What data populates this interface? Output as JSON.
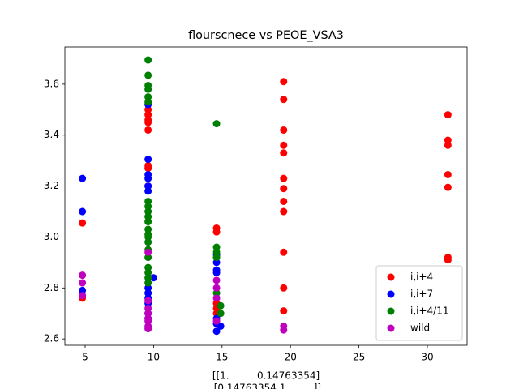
{
  "chart_data": {
    "type": "scatter",
    "title": "flourscnece vs PEOE_VSA3",
    "xlabel": [
      "[[1.         0.14763354]",
      " [0.14763354 1.        ]]"
    ],
    "xlim": [
      3.52,
      32.9
    ],
    "ylim": [
      2.575,
      3.746
    ],
    "xticks": [
      5,
      10,
      15,
      20,
      25,
      30
    ],
    "yticks": [
      2.6,
      2.8,
      {
        "value": 3,
        "label": "3.0"
      },
      3.2,
      3.4,
      3.6
    ],
    "legend": "lower right",
    "series": [
      {
        "name": "i,i+4",
        "color": "#ff0000",
        "x": [
          4.8,
          4.8,
          9.6,
          9.6,
          9.6,
          9.6,
          9.6,
          9.6,
          9.6,
          9.6,
          14.6,
          14.6,
          14.6,
          14.6,
          14.6,
          14.6,
          19.5,
          19.5,
          19.5,
          19.5,
          19.5,
          19.5,
          19.5,
          19.5,
          19.5,
          19.5,
          19.5,
          19.5,
          31.5,
          31.5,
          31.5,
          31.5,
          31.5,
          31.5,
          31.5
        ],
        "y": [
          3.055,
          2.76,
          3.5,
          3.48,
          3.46,
          3.45,
          3.42,
          3.28,
          3.27,
          3.2,
          3.035,
          3.02,
          2.74,
          2.72,
          2.7,
          2.66,
          3.61,
          3.54,
          3.42,
          3.36,
          3.33,
          3.23,
          3.19,
          3.14,
          3.1,
          2.94,
          2.8,
          2.71,
          3.48,
          3.38,
          3.36,
          3.245,
          3.195,
          2.92,
          2.91
        ]
      },
      {
        "name": "i,i+7",
        "color": "#0000ff",
        "x": [
          4.8,
          4.8,
          4.8,
          9.6,
          9.6,
          9.6,
          9.6,
          9.6,
          9.6,
          9.6,
          9.6,
          9.6,
          9.6,
          9.6,
          9.6,
          10.0,
          14.6,
          14.6,
          14.6,
          14.6,
          14.6,
          14.6,
          14.6,
          14.9
        ],
        "y": [
          3.23,
          3.1,
          2.79,
          3.52,
          3.305,
          3.245,
          3.23,
          3.2,
          3.18,
          2.8,
          2.78,
          2.76,
          2.74,
          2.7,
          2.68,
          2.84,
          2.93,
          2.9,
          2.87,
          2.86,
          2.68,
          2.66,
          2.63,
          2.65
        ]
      },
      {
        "name": "i,i+4/11",
        "color": "#008000",
        "x": [
          9.6,
          9.6,
          9.6,
          9.6,
          9.6,
          9.6,
          9.6,
          9.6,
          9.6,
          9.6,
          9.6,
          9.6,
          9.6,
          9.6,
          9.6,
          9.6,
          9.6,
          9.6,
          9.6,
          9.6,
          9.6,
          14.6,
          14.6,
          14.6,
          14.6,
          14.6,
          14.9,
          14.9
        ],
        "y": [
          3.695,
          3.635,
          3.595,
          3.58,
          3.55,
          3.53,
          3.14,
          3.12,
          3.1,
          3.08,
          3.06,
          3.03,
          3.01,
          3.0,
          2.98,
          2.95,
          2.92,
          2.88,
          2.86,
          2.84,
          2.82,
          3.445,
          2.96,
          2.94,
          2.92,
          2.78,
          2.73,
          2.7
        ]
      },
      {
        "name": "wild",
        "color": "#bf00bf",
        "x": [
          4.8,
          4.8,
          4.8,
          9.6,
          9.6,
          9.6,
          9.6,
          9.6,
          9.6,
          9.6,
          9.6,
          14.6,
          14.6,
          14.6,
          14.6,
          19.5,
          19.5
        ],
        "y": [
          2.85,
          2.82,
          2.77,
          2.94,
          2.75,
          2.72,
          2.7,
          2.68,
          2.67,
          2.65,
          2.64,
          2.83,
          2.8,
          2.76,
          2.67,
          2.65,
          2.635
        ]
      }
    ]
  }
}
